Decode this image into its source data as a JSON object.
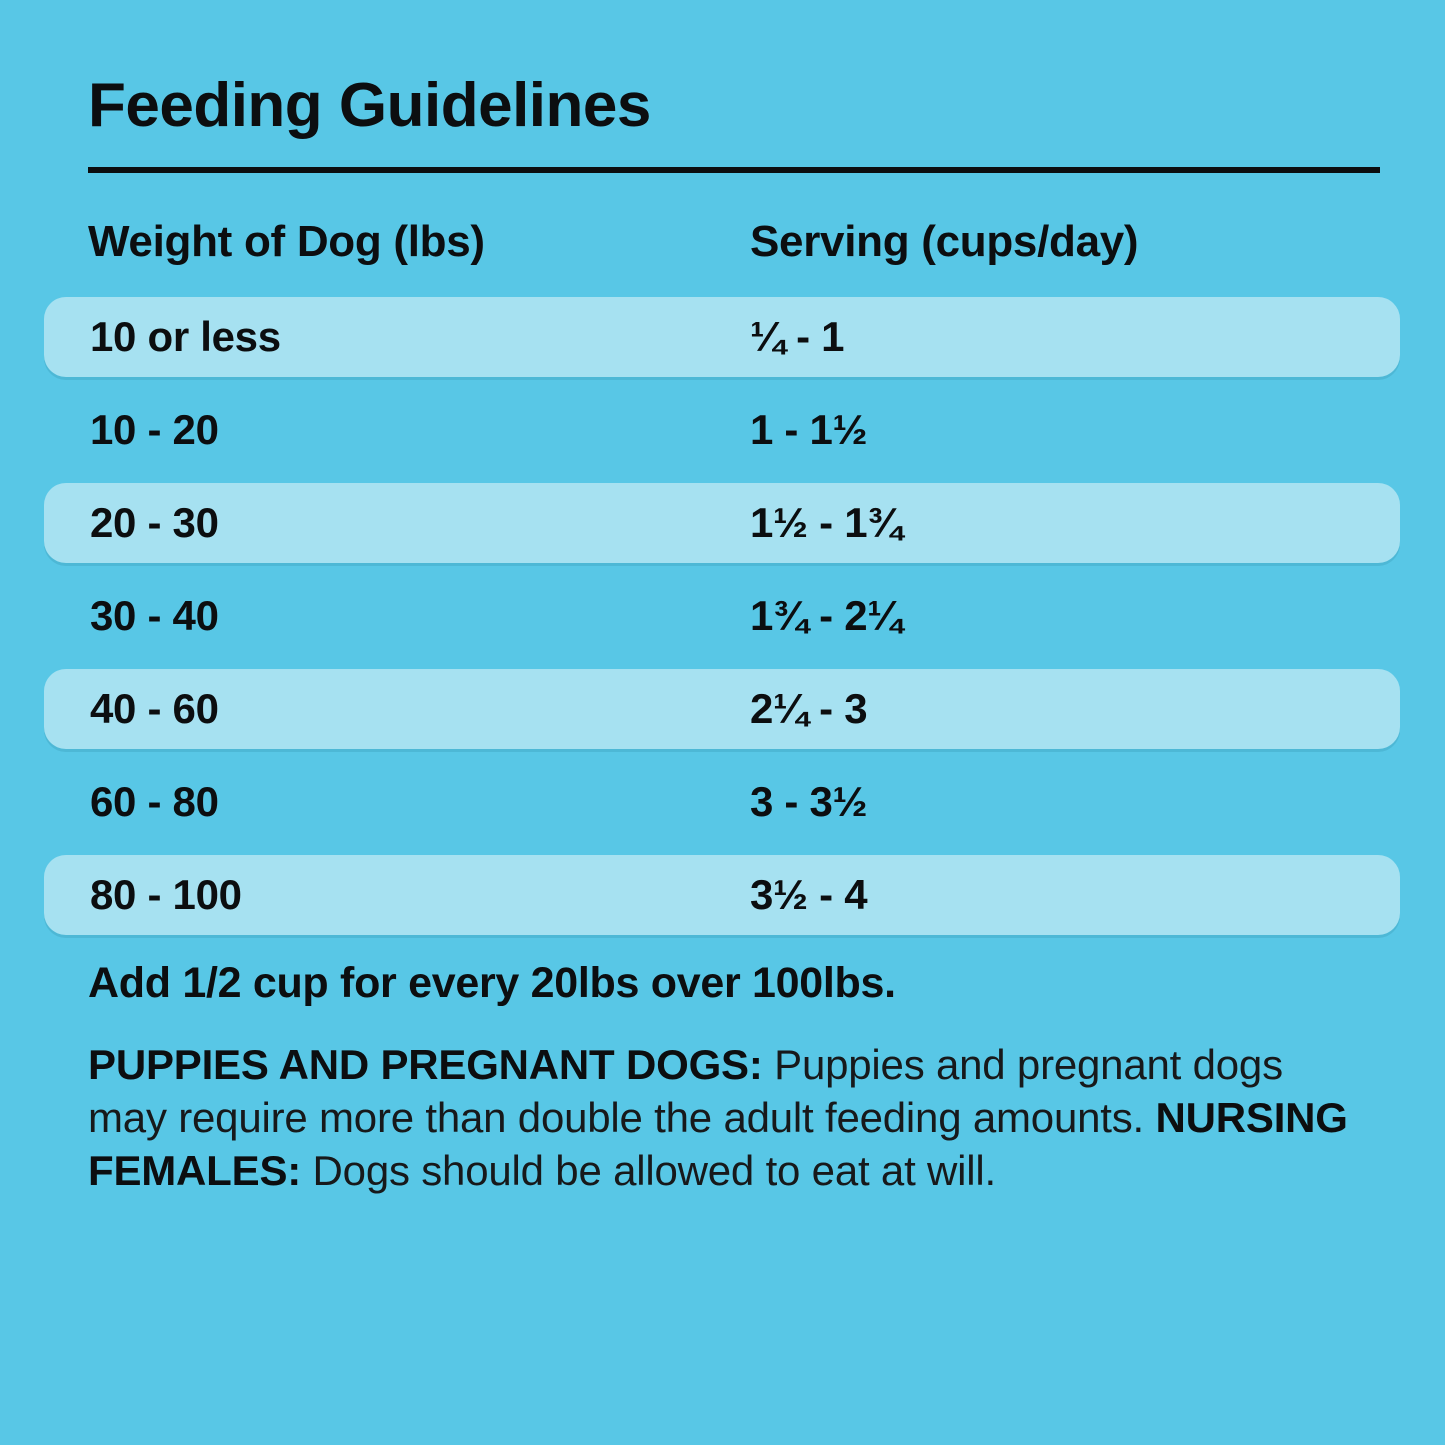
{
  "page": {
    "title": "Feeding Guidelines"
  },
  "table": {
    "headers": {
      "weight": "Weight of Dog (lbs)",
      "serving": "Serving (cups/day)"
    },
    "rows": [
      {
        "weight": "10 or less",
        "serving": "¼ - 1"
      },
      {
        "weight": "10 - 20",
        "serving": "1 - 1½"
      },
      {
        "weight": "20 - 30",
        "serving": "1½ - 1¾"
      },
      {
        "weight": "30 - 40",
        "serving": "1¾ - 2¼"
      },
      {
        "weight": "40 - 60",
        "serving": "2¼ - 3"
      },
      {
        "weight": "60 - 80",
        "serving": "3 - 3½"
      },
      {
        "weight": "80 - 100",
        "serving": "3½ - 4"
      }
    ]
  },
  "notes": {
    "extra": "Add 1/2 cup for every 20lbs over 100lbs.",
    "puppies_label": "PUPPIES AND PREGNANT DOGS:",
    "puppies_text": " Puppies and pregnant dogs may require more than double the adult feeding amounts. ",
    "nursing_label": "NURSING FEMALES:",
    "nursing_text": " Dogs should be allowed to eat at will."
  },
  "colors": {
    "background": "#58c7e6",
    "row_highlight": "#a6e1f1",
    "text": "#0c0e10"
  }
}
